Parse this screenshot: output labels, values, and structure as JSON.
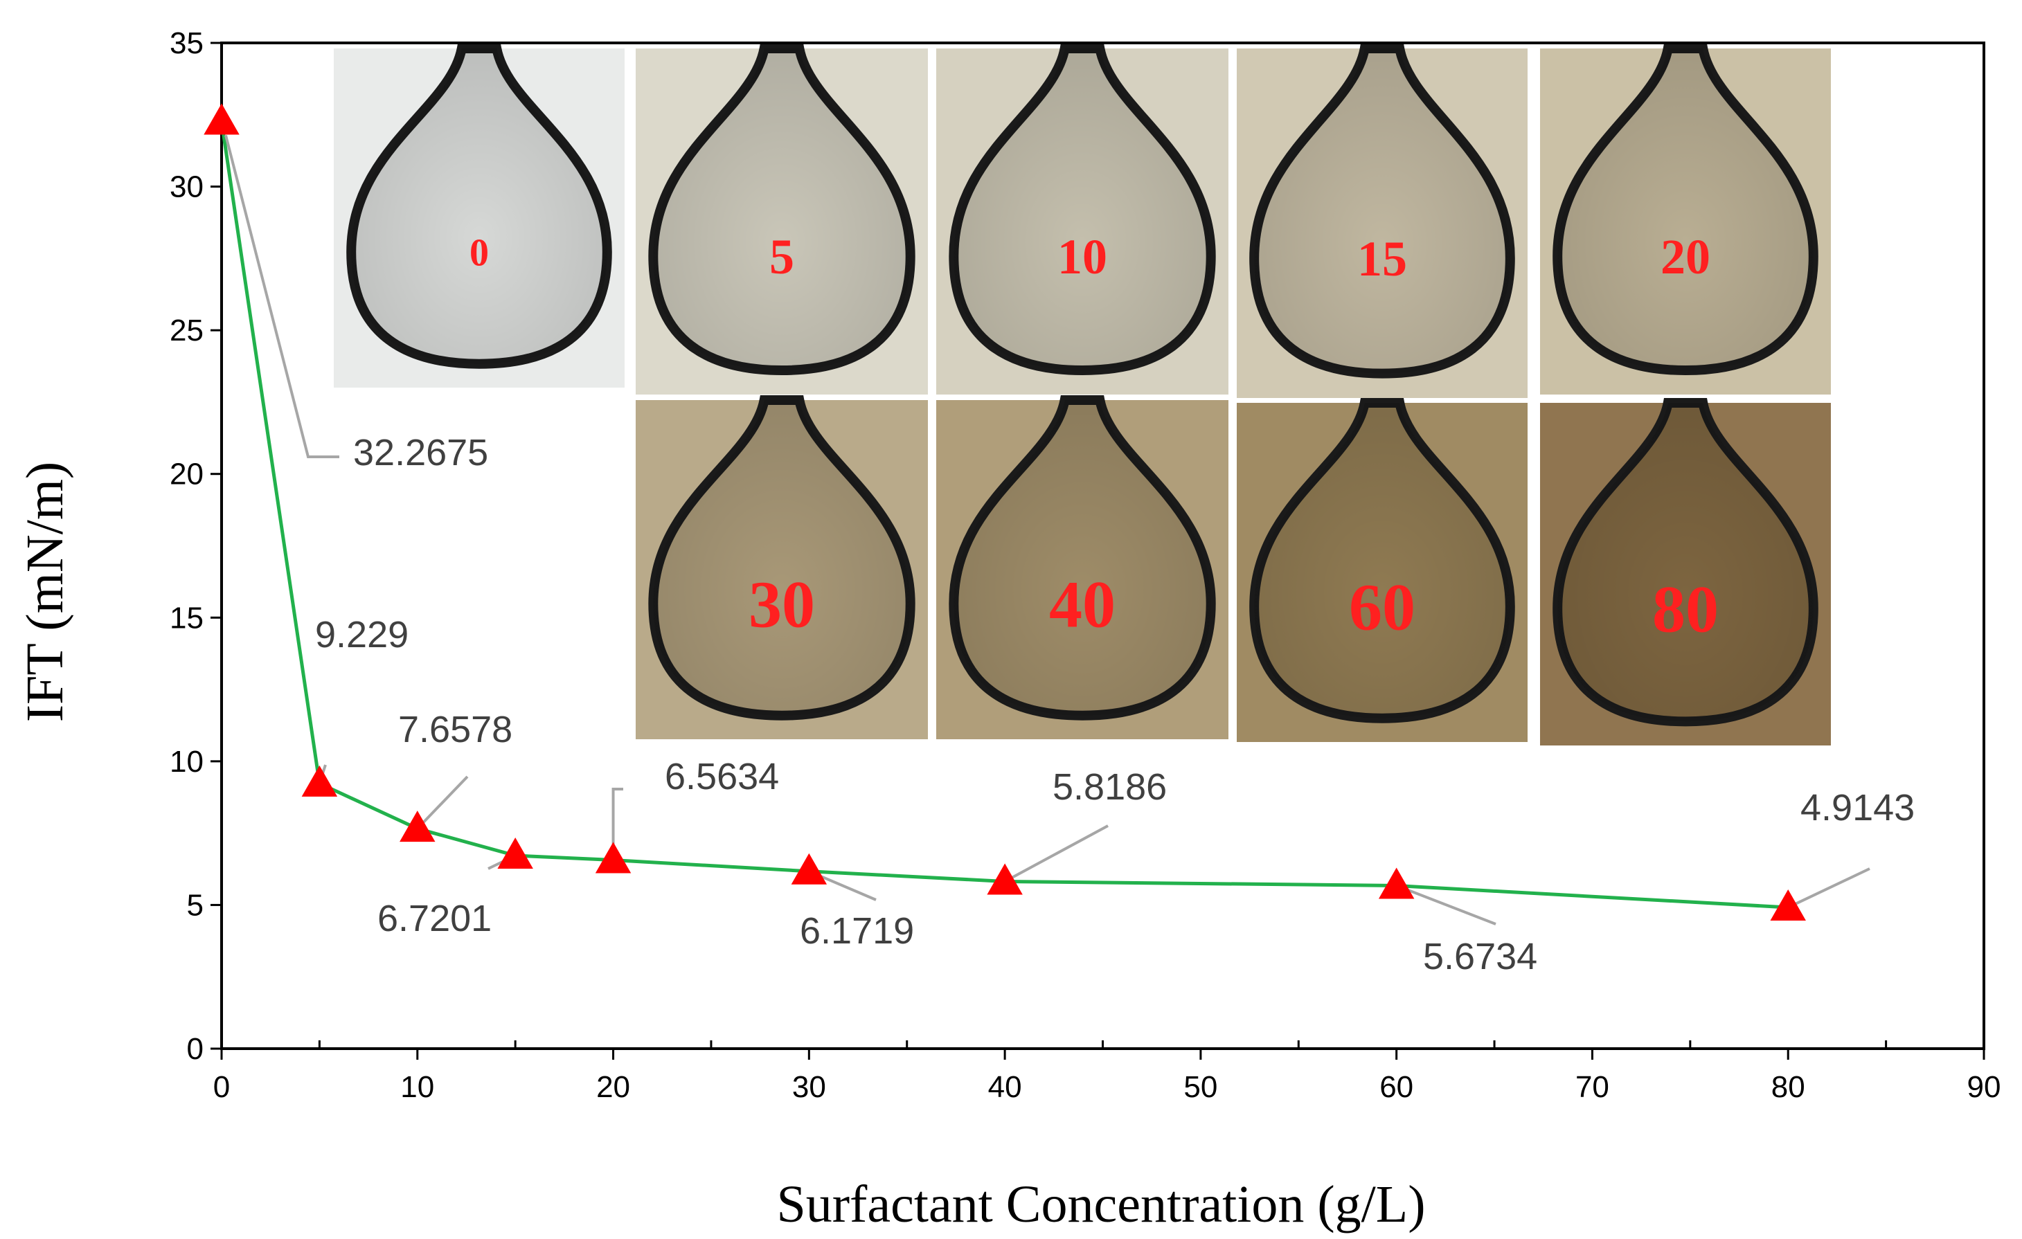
{
  "chart_data": {
    "type": "line",
    "title": "",
    "xlabel": "Surfactant Concentration (g/L)",
    "ylabel": "IFT (mN/m)",
    "xlim": [
      0,
      90
    ],
    "ylim": [
      0,
      35
    ],
    "x_ticks": [
      "0",
      "10",
      "20",
      "30",
      "40",
      "50",
      "60",
      "70",
      "80",
      "90"
    ],
    "y_ticks": [
      "0",
      "5",
      "10",
      "15",
      "20",
      "25",
      "30",
      "35"
    ],
    "grid": false,
    "line_color": "#22b14c",
    "marker": "triangle",
    "marker_color": "#ff0000",
    "series": [
      {
        "x": [
          0,
          5,
          10,
          15,
          20,
          30,
          40,
          60,
          80
        ],
        "y": [
          32.2675,
          9.229,
          7.6578,
          6.7201,
          6.5634,
          6.1719,
          5.8186,
          5.6734,
          4.9143
        ],
        "labels": [
          "32.2675",
          "9.229",
          "7.6578",
          "6.7201",
          "6.5634",
          "6.1719",
          "5.8186",
          "5.6734",
          "4.9143"
        ]
      }
    ],
    "inset_images": {
      "description_labels": [
        "0",
        "5",
        "10",
        "15",
        "20",
        "30",
        "40",
        "60",
        "80"
      ]
    }
  }
}
